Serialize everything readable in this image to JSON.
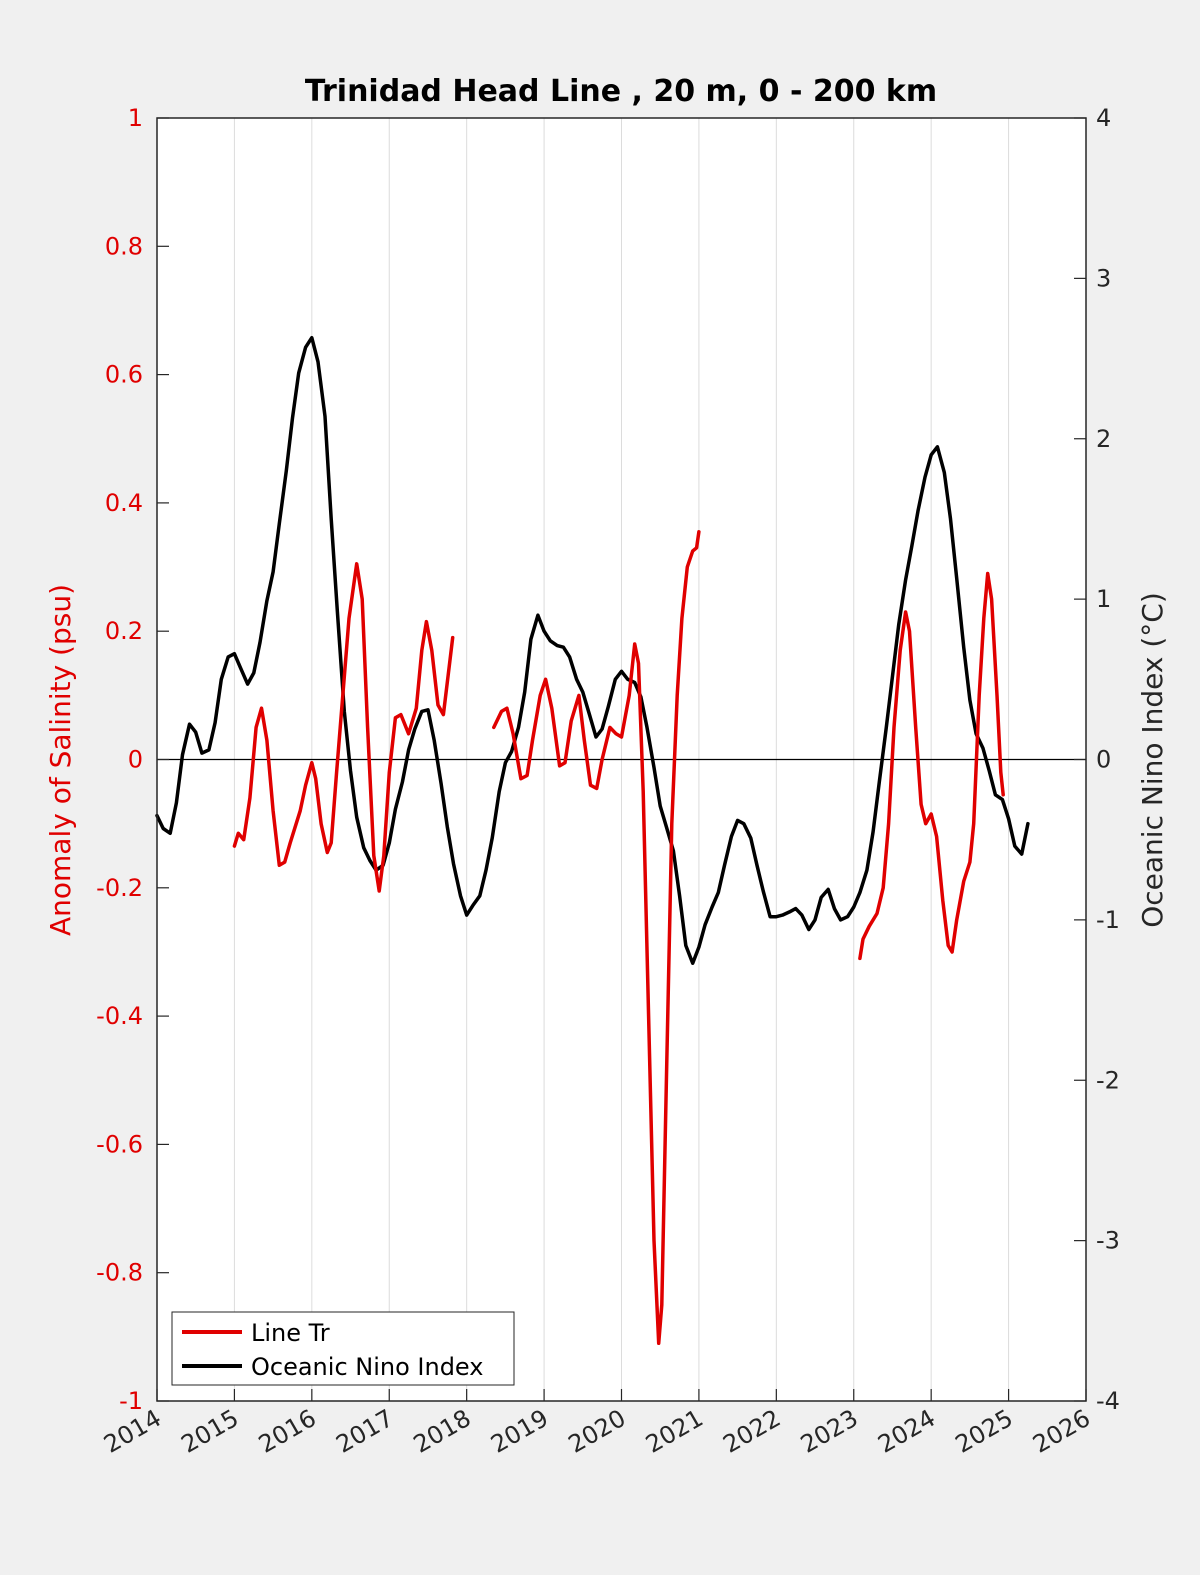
{
  "chart_data": {
    "type": "line",
    "title": "Trinidad Head Line , 20 m, 0 - 200 km",
    "xlabel": "",
    "ylabel_left": "Anomaly of Salinity (psu)",
    "ylabel_right": "Oceanic Nino Index (°C)",
    "xlim": [
      2014,
      2026
    ],
    "ylim_left": [
      -1,
      1
    ],
    "ylim_right": [
      -4,
      4
    ],
    "x_ticks": [
      "2014",
      "2015",
      "2016",
      "2017",
      "2018",
      "2019",
      "2020",
      "2021",
      "2022",
      "2023",
      "2024",
      "2025",
      "2026"
    ],
    "y_ticks_left": [
      "1",
      "0.8",
      "0.6",
      "0.4",
      "0.2",
      "0",
      "-0.2",
      "-0.4",
      "-0.6",
      "-0.8",
      "-1"
    ],
    "y_ticks_right": [
      "4",
      "3",
      "2",
      "1",
      "0",
      "-1",
      "-2",
      "-3",
      "-4"
    ],
    "grid": "vertical",
    "legend_position": "bottom-left",
    "colors": {
      "salinity": "#e00000",
      "oni": "#000000",
      "background": "#f0f0f0"
    },
    "series": [
      {
        "name": "Line Tr",
        "axis": "left",
        "segments": [
          [
            [
              2015.0,
              -0.135
            ],
            [
              2015.05,
              -0.115
            ],
            [
              2015.12,
              -0.125
            ],
            [
              2015.2,
              -0.06
            ],
            [
              2015.28,
              0.05
            ],
            [
              2015.35,
              0.08
            ],
            [
              2015.42,
              0.03
            ],
            [
              2015.5,
              -0.08
            ],
            [
              2015.58,
              -0.165
            ],
            [
              2015.65,
              -0.16
            ],
            [
              2015.72,
              -0.13
            ],
            [
              2015.85,
              -0.08
            ],
            [
              2015.92,
              -0.04
            ],
            [
              2016.0,
              -0.005
            ],
            [
              2016.05,
              -0.03
            ],
            [
              2016.12,
              -0.1
            ],
            [
              2016.2,
              -0.145
            ],
            [
              2016.25,
              -0.13
            ],
            [
              2016.32,
              -0.02
            ],
            [
              2016.4,
              0.1
            ],
            [
              2016.48,
              0.22
            ],
            [
              2016.58,
              0.305
            ],
            [
              2016.65,
              0.25
            ],
            [
              2016.72,
              0.05
            ],
            [
              2016.8,
              -0.15
            ],
            [
              2016.87,
              -0.205
            ],
            [
              2016.93,
              -0.15
            ],
            [
              2017.0,
              -0.02
            ],
            [
              2017.08,
              0.065
            ],
            [
              2017.15,
              0.07
            ],
            [
              2017.25,
              0.04
            ],
            [
              2017.35,
              0.08
            ],
            [
              2017.42,
              0.17
            ],
            [
              2017.48,
              0.215
            ],
            [
              2017.55,
              0.17
            ],
            [
              2017.63,
              0.085
            ],
            [
              2017.7,
              0.07
            ],
            [
              2017.78,
              0.15
            ],
            [
              2017.82,
              0.19
            ]
          ],
          [
            [
              2018.35,
              0.05
            ],
            [
              2018.45,
              0.075
            ],
            [
              2018.52,
              0.08
            ],
            [
              2018.6,
              0.04
            ],
            [
              2018.7,
              -0.03
            ],
            [
              2018.78,
              -0.025
            ],
            [
              2018.85,
              0.03
            ],
            [
              2018.95,
              0.1
            ],
            [
              2019.02,
              0.125
            ],
            [
              2019.1,
              0.08
            ],
            [
              2019.2,
              -0.01
            ],
            [
              2019.27,
              -0.005
            ],
            [
              2019.35,
              0.06
            ],
            [
              2019.45,
              0.1
            ],
            [
              2019.52,
              0.03
            ],
            [
              2019.6,
              -0.04
            ],
            [
              2019.68,
              -0.045
            ],
            [
              2019.75,
              0.0
            ],
            [
              2019.85,
              0.05
            ],
            [
              2019.93,
              0.04
            ],
            [
              2020.0,
              0.035
            ],
            [
              2020.1,
              0.1
            ],
            [
              2020.17,
              0.18
            ],
            [
              2020.22,
              0.15
            ],
            [
              2020.28,
              -0.05
            ],
            [
              2020.35,
              -0.4
            ],
            [
              2020.42,
              -0.75
            ],
            [
              2020.48,
              -0.91
            ],
            [
              2020.52,
              -0.85
            ],
            [
              2020.58,
              -0.5
            ],
            [
              2020.65,
              -0.1
            ],
            [
              2020.72,
              0.1
            ],
            [
              2020.78,
              0.22
            ],
            [
              2020.85,
              0.3
            ],
            [
              2020.92,
              0.325
            ],
            [
              2020.97,
              0.33
            ],
            [
              2021.0,
              0.355
            ]
          ],
          [
            [
              2023.08,
              -0.31
            ],
            [
              2023.12,
              -0.28
            ],
            [
              2023.2,
              -0.26
            ],
            [
              2023.3,
              -0.24
            ],
            [
              2023.38,
              -0.2
            ],
            [
              2023.45,
              -0.1
            ],
            [
              2023.52,
              0.05
            ],
            [
              2023.6,
              0.17
            ],
            [
              2023.67,
              0.23
            ],
            [
              2023.72,
              0.2
            ],
            [
              2023.8,
              0.05
            ],
            [
              2023.87,
              -0.07
            ],
            [
              2023.93,
              -0.1
            ],
            [
              2024.0,
              -0.085
            ],
            [
              2024.07,
              -0.12
            ],
            [
              2024.15,
              -0.22
            ],
            [
              2024.22,
              -0.29
            ],
            [
              2024.27,
              -0.3
            ],
            [
              2024.33,
              -0.25
            ],
            [
              2024.42,
              -0.19
            ],
            [
              2024.5,
              -0.16
            ],
            [
              2024.55,
              -0.1
            ],
            [
              2024.62,
              0.1
            ],
            [
              2024.68,
              0.22
            ],
            [
              2024.73,
              0.29
            ],
            [
              2024.78,
              0.25
            ],
            [
              2024.85,
              0.1
            ],
            [
              2024.9,
              -0.02
            ],
            [
              2024.93,
              -0.055
            ]
          ]
        ]
      },
      {
        "name": "Oceanic Nino Index",
        "axis": "right",
        "segments": [
          [
            [
              2014.0,
              -0.35
            ],
            [
              2014.08,
              -0.43
            ],
            [
              2014.17,
              -0.46
            ],
            [
              2014.25,
              -0.27
            ],
            [
              2014.33,
              0.03
            ],
            [
              2014.42,
              0.22
            ],
            [
              2014.5,
              0.17
            ],
            [
              2014.58,
              0.04
            ],
            [
              2014.67,
              0.06
            ],
            [
              2014.75,
              0.23
            ],
            [
              2014.83,
              0.5
            ],
            [
              2014.92,
              0.64
            ],
            [
              2015.0,
              0.66
            ],
            [
              2015.08,
              0.57
            ],
            [
              2015.17,
              0.47
            ],
            [
              2015.25,
              0.54
            ],
            [
              2015.33,
              0.73
            ],
            [
              2015.42,
              0.99
            ],
            [
              2015.5,
              1.17
            ],
            [
              2015.58,
              1.47
            ],
            [
              2015.67,
              1.8
            ],
            [
              2015.75,
              2.13
            ],
            [
              2015.83,
              2.41
            ],
            [
              2015.92,
              2.57
            ],
            [
              2016.0,
              2.63
            ],
            [
              2016.08,
              2.48
            ],
            [
              2016.17,
              2.14
            ],
            [
              2016.25,
              1.5
            ],
            [
              2016.33,
              0.92
            ],
            [
              2016.42,
              0.3
            ],
            [
              2016.5,
              -0.07
            ],
            [
              2016.58,
              -0.36
            ],
            [
              2016.67,
              -0.55
            ],
            [
              2016.75,
              -0.63
            ],
            [
              2016.83,
              -0.69
            ],
            [
              2016.92,
              -0.66
            ],
            [
              2017.0,
              -0.52
            ],
            [
              2017.08,
              -0.31
            ],
            [
              2017.17,
              -0.14
            ],
            [
              2017.25,
              0.06
            ],
            [
              2017.33,
              0.19
            ],
            [
              2017.42,
              0.3
            ],
            [
              2017.5,
              0.31
            ],
            [
              2017.58,
              0.12
            ],
            [
              2017.67,
              -0.15
            ],
            [
              2017.75,
              -0.42
            ],
            [
              2017.83,
              -0.65
            ],
            [
              2017.92,
              -0.85
            ],
            [
              2018.0,
              -0.97
            ],
            [
              2018.08,
              -0.91
            ],
            [
              2018.17,
              -0.85
            ],
            [
              2018.25,
              -0.69
            ],
            [
              2018.33,
              -0.49
            ],
            [
              2018.42,
              -0.2
            ],
            [
              2018.5,
              -0.02
            ],
            [
              2018.58,
              0.05
            ],
            [
              2018.67,
              0.2
            ],
            [
              2018.75,
              0.42
            ],
            [
              2018.83,
              0.75
            ],
            [
              2018.92,
              0.9
            ],
            [
              2019.0,
              0.8
            ],
            [
              2019.08,
              0.74
            ],
            [
              2019.17,
              0.71
            ],
            [
              2019.25,
              0.7
            ],
            [
              2019.33,
              0.64
            ],
            [
              2019.42,
              0.5
            ],
            [
              2019.5,
              0.42
            ],
            [
              2019.58,
              0.29
            ],
            [
              2019.67,
              0.14
            ],
            [
              2019.75,
              0.19
            ],
            [
              2019.83,
              0.33
            ],
            [
              2019.92,
              0.5
            ],
            [
              2020.0,
              0.55
            ],
            [
              2020.08,
              0.5
            ],
            [
              2020.17,
              0.48
            ],
            [
              2020.25,
              0.39
            ],
            [
              2020.33,
              0.2
            ],
            [
              2020.42,
              -0.05
            ],
            [
              2020.5,
              -0.29
            ],
            [
              2020.58,
              -0.42
            ],
            [
              2020.67,
              -0.57
            ],
            [
              2020.75,
              -0.85
            ],
            [
              2020.83,
              -1.16
            ],
            [
              2020.92,
              -1.27
            ],
            [
              2021.0,
              -1.17
            ],
            [
              2021.08,
              -1.03
            ],
            [
              2021.17,
              -0.92
            ],
            [
              2021.25,
              -0.83
            ],
            [
              2021.33,
              -0.66
            ],
            [
              2021.42,
              -0.48
            ],
            [
              2021.5,
              -0.38
            ],
            [
              2021.58,
              -0.4
            ],
            [
              2021.67,
              -0.49
            ],
            [
              2021.75,
              -0.66
            ],
            [
              2021.83,
              -0.82
            ],
            [
              2021.92,
              -0.98
            ],
            [
              2022.0,
              -0.98
            ],
            [
              2022.08,
              -0.97
            ],
            [
              2022.17,
              -0.95
            ],
            [
              2022.25,
              -0.93
            ],
            [
              2022.33,
              -0.97
            ],
            [
              2022.42,
              -1.06
            ],
            [
              2022.5,
              -1.0
            ],
            [
              2022.58,
              -0.86
            ],
            [
              2022.67,
              -0.81
            ],
            [
              2022.75,
              -0.93
            ],
            [
              2022.83,
              -1.0
            ],
            [
              2022.92,
              -0.98
            ],
            [
              2023.0,
              -0.92
            ],
            [
              2023.08,
              -0.83
            ],
            [
              2023.17,
              -0.69
            ],
            [
              2023.25,
              -0.45
            ],
            [
              2023.33,
              -0.14
            ],
            [
              2023.42,
              0.2
            ],
            [
              2023.5,
              0.52
            ],
            [
              2023.58,
              0.84
            ],
            [
              2023.67,
              1.12
            ],
            [
              2023.75,
              1.33
            ],
            [
              2023.83,
              1.55
            ],
            [
              2023.92,
              1.76
            ],
            [
              2024.0,
              1.9
            ],
            [
              2024.08,
              1.95
            ],
            [
              2024.17,
              1.79
            ],
            [
              2024.25,
              1.5
            ],
            [
              2024.33,
              1.13
            ],
            [
              2024.42,
              0.7
            ],
            [
              2024.5,
              0.37
            ],
            [
              2024.58,
              0.16
            ],
            [
              2024.67,
              0.07
            ],
            [
              2024.75,
              -0.07
            ],
            [
              2024.83,
              -0.22
            ],
            [
              2024.92,
              -0.25
            ],
            [
              2025.0,
              -0.37
            ],
            [
              2025.08,
              -0.54
            ],
            [
              2025.17,
              -0.59
            ],
            [
              2025.25,
              -0.4
            ]
          ]
        ]
      }
    ]
  }
}
